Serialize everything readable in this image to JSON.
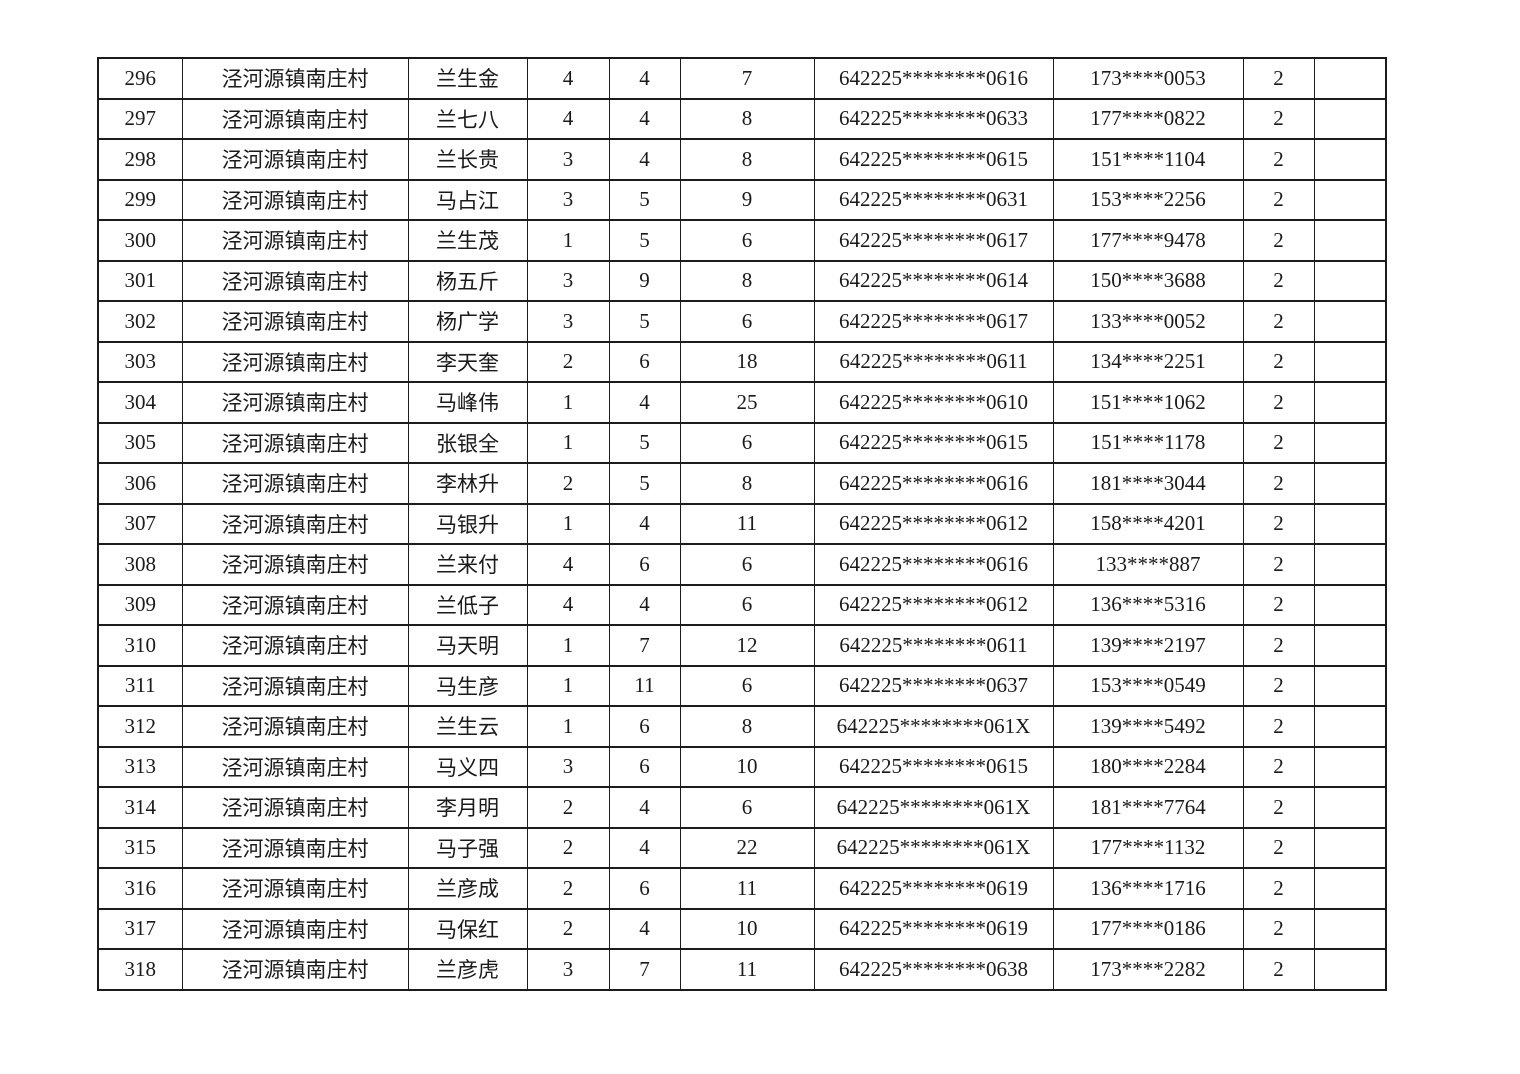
{
  "colors": {
    "background": "#ffffff",
    "text": "#1a1a1a",
    "border": "#1c1c1c"
  },
  "table": {
    "col_keys": [
      "seq",
      "village",
      "name",
      "num1",
      "num2",
      "num3",
      "id-masked",
      "phone-masked",
      "count",
      "empty"
    ],
    "rows": [
      [
        "296",
        "泾河源镇南庄村",
        "兰生金",
        "4",
        "4",
        "7",
        "642225********0616",
        "173****0053",
        "2",
        ""
      ],
      [
        "297",
        "泾河源镇南庄村",
        "兰七八",
        "4",
        "4",
        "8",
        "642225********0633",
        "177****0822",
        "2",
        ""
      ],
      [
        "298",
        "泾河源镇南庄村",
        "兰长贵",
        "3",
        "4",
        "8",
        "642225********0615",
        "151****1104",
        "2",
        ""
      ],
      [
        "299",
        "泾河源镇南庄村",
        "马占江",
        "3",
        "5",
        "9",
        "642225********0631",
        "153****2256",
        "2",
        ""
      ],
      [
        "300",
        "泾河源镇南庄村",
        "兰生茂",
        "1",
        "5",
        "6",
        "642225********0617",
        "177****9478",
        "2",
        ""
      ],
      [
        "301",
        "泾河源镇南庄村",
        "杨五斤",
        "3",
        "9",
        "8",
        "642225********0614",
        "150****3688",
        "2",
        ""
      ],
      [
        "302",
        "泾河源镇南庄村",
        "杨广学",
        "3",
        "5",
        "6",
        "642225********0617",
        "133****0052",
        "2",
        ""
      ],
      [
        "303",
        "泾河源镇南庄村",
        "李天奎",
        "2",
        "6",
        "18",
        "642225********0611",
        "134****2251",
        "2",
        ""
      ],
      [
        "304",
        "泾河源镇南庄村",
        "马峰伟",
        "1",
        "4",
        "25",
        "642225********0610",
        "151****1062",
        "2",
        ""
      ],
      [
        "305",
        "泾河源镇南庄村",
        "张银全",
        "1",
        "5",
        "6",
        "642225********0615",
        "151****1178",
        "2",
        ""
      ],
      [
        "306",
        "泾河源镇南庄村",
        "李林升",
        "2",
        "5",
        "8",
        "642225********0616",
        "181****3044",
        "2",
        ""
      ],
      [
        "307",
        "泾河源镇南庄村",
        "马银升",
        "1",
        "4",
        "11",
        "642225********0612",
        "158****4201",
        "2",
        ""
      ],
      [
        "308",
        "泾河源镇南庄村",
        "兰来付",
        "4",
        "6",
        "6",
        "642225********0616",
        "133****887",
        "2",
        ""
      ],
      [
        "309",
        "泾河源镇南庄村",
        "兰低子",
        "4",
        "4",
        "6",
        "642225********0612",
        "136****5316",
        "2",
        ""
      ],
      [
        "310",
        "泾河源镇南庄村",
        "马天明",
        "1",
        "7",
        "12",
        "642225********0611",
        "139****2197",
        "2",
        ""
      ],
      [
        "311",
        "泾河源镇南庄村",
        "马生彦",
        "1",
        "11",
        "6",
        "642225********0637",
        "153****0549",
        "2",
        ""
      ],
      [
        "312",
        "泾河源镇南庄村",
        "兰生云",
        "1",
        "6",
        "8",
        "642225********061X",
        "139****5492",
        "2",
        ""
      ],
      [
        "313",
        "泾河源镇南庄村",
        "马义四",
        "3",
        "6",
        "10",
        "642225********0615",
        "180****2284",
        "2",
        ""
      ],
      [
        "314",
        "泾河源镇南庄村",
        "李月明",
        "2",
        "4",
        "6",
        "642225********061X",
        "181****7764",
        "2",
        ""
      ],
      [
        "315",
        "泾河源镇南庄村",
        "马子强",
        "2",
        "4",
        "22",
        "642225********061X",
        "177****1132",
        "2",
        ""
      ],
      [
        "316",
        "泾河源镇南庄村",
        "兰彦成",
        "2",
        "6",
        "11",
        "642225********0619",
        "136****1716",
        "2",
        ""
      ],
      [
        "317",
        "泾河源镇南庄村",
        "马保红",
        "2",
        "4",
        "10",
        "642225********0619",
        "177****0186",
        "2",
        ""
      ],
      [
        "318",
        "泾河源镇南庄村",
        "兰彦虎",
        "3",
        "7",
        "11",
        "642225********0638",
        "173****2282",
        "2",
        ""
      ]
    ]
  }
}
